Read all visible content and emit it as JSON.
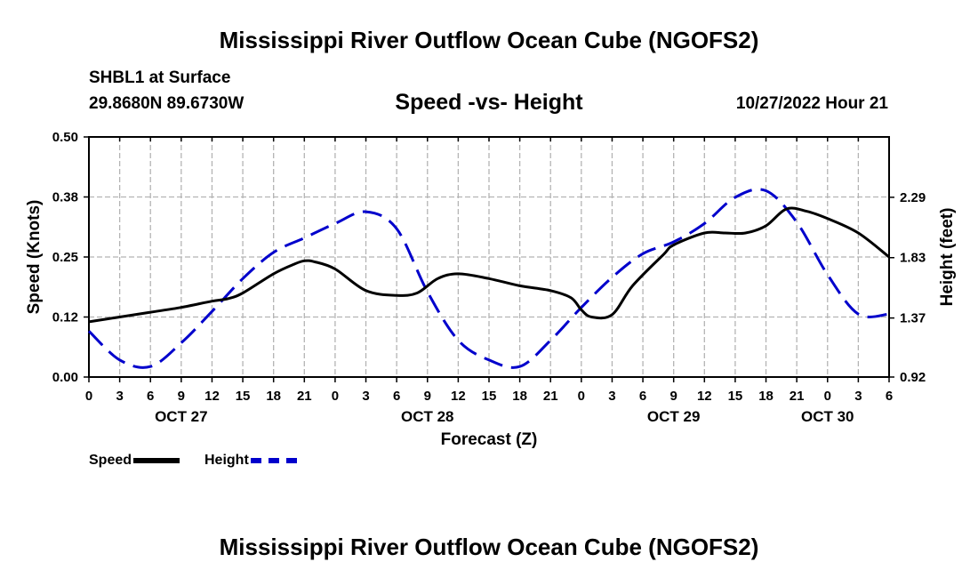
{
  "header": {
    "title": "Mississippi River Outflow Ocean Cube (NGOFS2)",
    "station": "SHBL1 at Surface",
    "coords": "29.8680N  89.6730W",
    "subtitle": "Speed -vs- Height",
    "datetime": "10/27/2022 Hour 21"
  },
  "footer": {
    "title": "Mississippi River Outflow Ocean Cube (NGOFS2)"
  },
  "chart_data": {
    "type": "line",
    "title": "Speed -vs- Height",
    "xlabel": "Forecast (Z)",
    "ylabel": "Speed (Knots)",
    "y2label": "Height (feet)",
    "x_hours_range": [
      0,
      78
    ],
    "x_tick_labels": [
      "0",
      "3",
      "6",
      "9",
      "12",
      "15",
      "18",
      "21",
      "0",
      "3",
      "6",
      "9",
      "12",
      "15",
      "18",
      "21",
      "0",
      "3",
      "6",
      "9",
      "12",
      "15",
      "18",
      "21",
      "0",
      "3",
      "6"
    ],
    "day_labels": [
      {
        "label": "OCT 27",
        "hour": 9
      },
      {
        "label": "OCT 28",
        "hour": 33
      },
      {
        "label": "OCT 29",
        "hour": 57
      },
      {
        "label": "OCT 30",
        "hour": 72
      }
    ],
    "y_ticks": [
      "0.00",
      "0.12",
      "0.25",
      "0.38",
      "0.50"
    ],
    "ylim": [
      0,
      0.5
    ],
    "y2_ticks": [
      "0.92",
      "1.37",
      "1.83",
      "2.29"
    ],
    "y2lim": [
      0.92,
      2.75
    ],
    "grid": true,
    "legend": "bottom-left",
    "series": [
      {
        "name": "Speed",
        "axis": "left",
        "color": "#000000",
        "style": "solid",
        "x": [
          0,
          3,
          6,
          9,
          12,
          13.5,
          15,
          18,
          20,
          21,
          22,
          24,
          27,
          30,
          32,
          34,
          36,
          39,
          42,
          45,
          47,
          48,
          49,
          51,
          53,
          56,
          57,
          60,
          62,
          64,
          66,
          68,
          70,
          72,
          75,
          78
        ],
        "y": [
          0.115,
          0.125,
          0.135,
          0.145,
          0.158,
          0.163,
          0.175,
          0.215,
          0.235,
          0.242,
          0.24,
          0.225,
          0.18,
          0.17,
          0.175,
          0.205,
          0.215,
          0.205,
          0.19,
          0.18,
          0.165,
          0.14,
          0.125,
          0.13,
          0.19,
          0.255,
          0.275,
          0.3,
          0.3,
          0.3,
          0.315,
          0.35,
          0.345,
          0.33,
          0.3,
          0.25
        ]
      },
      {
        "name": "Height",
        "axis": "right",
        "color": "#0000cc",
        "style": "dashed",
        "x": [
          0,
          3,
          6,
          9,
          12,
          15,
          18,
          21,
          24,
          27,
          30,
          33,
          36,
          39,
          42,
          45,
          48,
          51,
          54,
          57,
          60,
          63,
          66,
          69,
          72,
          75,
          78
        ],
        "y": [
          1.27,
          1.05,
          1.0,
          1.18,
          1.42,
          1.67,
          1.87,
          1.98,
          2.09,
          2.18,
          2.05,
          1.57,
          1.2,
          1.05,
          1.0,
          1.2,
          1.45,
          1.68,
          1.86,
          1.95,
          2.09,
          2.29,
          2.34,
          2.1,
          1.7,
          1.4,
          1.4
        ]
      }
    ]
  }
}
